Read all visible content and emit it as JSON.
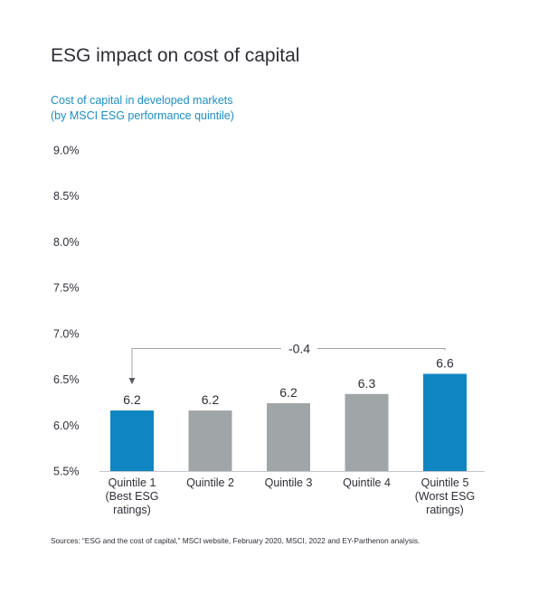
{
  "title": "ESG impact on cost of capital",
  "subtitle_line1": "Cost of capital in developed markets",
  "subtitle_line2": "(by MSCI ESG performance quintile)",
  "source": "Sources: “ESG and the cost of capital,” MSCI website, February 2020, MSCI, 2022 and EY-Parthenon analysis.",
  "chart_data": {
    "type": "bar",
    "title": "ESG impact on cost of capital",
    "subtitle": "Cost of capital in developed markets (by MSCI ESG performance quintile)",
    "ylim": [
      5.5,
      9.0
    ],
    "yticks": [
      "5.5%",
      "6.0%",
      "6.5%",
      "7.0%",
      "7.5%",
      "8.0%",
      "8.5%",
      "9.0%"
    ],
    "ytick_values": [
      5.5,
      6.0,
      6.5,
      7.0,
      7.5,
      8.0,
      8.5,
      9.0
    ],
    "grid": false,
    "categories": [
      [
        "Quintile 1",
        "(Best ESG",
        "ratings)"
      ],
      [
        "Quintile 2"
      ],
      [
        "Quintile 3"
      ],
      [
        "Quintile 4"
      ],
      [
        "Quintile 5",
        "(Worst ESG",
        "ratings)"
      ]
    ],
    "values": [
      6.16,
      6.16,
      6.24,
      6.34,
      6.56
    ],
    "data_labels": [
      "6.2",
      "6.2",
      "6.2",
      "6.3",
      "6.6"
    ],
    "colors": [
      "#0f86c2",
      "#a0a5a7",
      "#a0a5a7",
      "#a0a5a7",
      "#0f86c2"
    ],
    "annotation": {
      "text": "-0.4",
      "from_category": 4,
      "to_category": 0
    }
  }
}
